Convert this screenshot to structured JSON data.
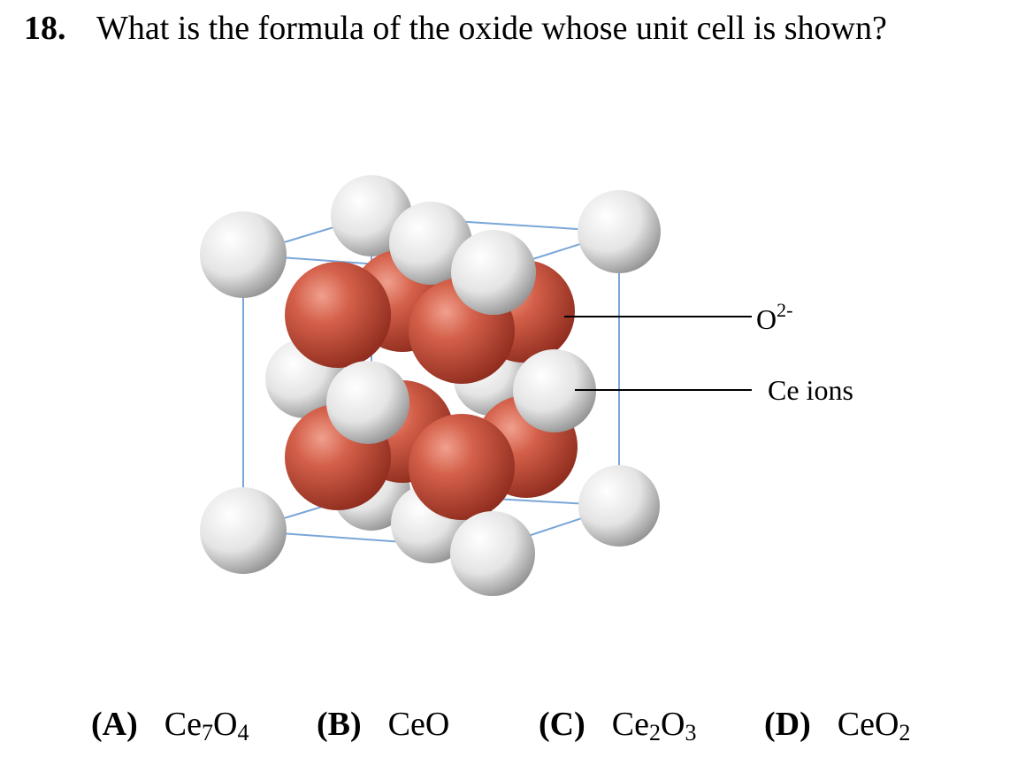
{
  "question": {
    "number": "18.",
    "text": "What is the formula of the oxide whose unit cell is shown?"
  },
  "figure": {
    "labels": {
      "oxide": {
        "base": "O",
        "sup": "2-"
      },
      "cation": "Ce ions"
    },
    "colors": {
      "oxide_ion": "#c9503e",
      "ce_ion": "#e6e6e6",
      "cell_edge": "#7aa6d8",
      "leader_line": "#000000"
    }
  },
  "options": [
    {
      "letter": "(A)",
      "formula": [
        {
          "t": "Ce"
        },
        {
          "s": "7"
        },
        {
          "t": "O"
        },
        {
          "s": "4"
        }
      ]
    },
    {
      "letter": "(B)",
      "formula": [
        {
          "t": "CeO"
        }
      ]
    },
    {
      "letter": "(C)",
      "formula": [
        {
          "t": "Ce"
        },
        {
          "s": "2"
        },
        {
          "t": "O"
        },
        {
          "s": "3"
        }
      ]
    },
    {
      "letter": "(D)",
      "formula": [
        {
          "t": "CeO"
        },
        {
          "s": "2"
        }
      ]
    }
  ]
}
